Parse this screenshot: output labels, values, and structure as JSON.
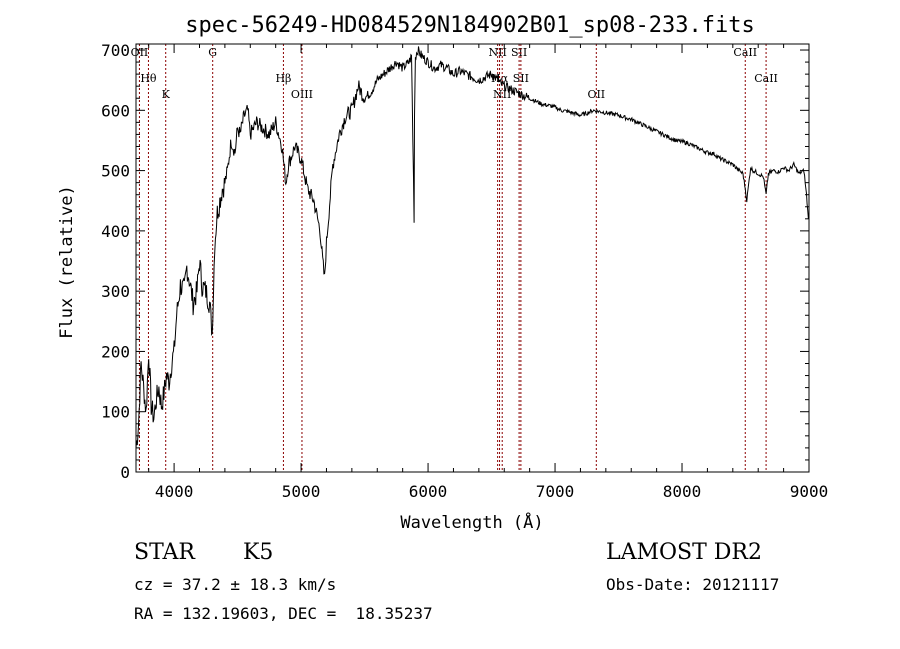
{
  "chart_data": {
    "type": "line",
    "title": "spec-56249-HD084529N184902B01_sp08-233.fits",
    "xlabel": "Wavelength (Å)",
    "ylabel": "Flux (relative)",
    "xlim": [
      3700,
      9000
    ],
    "ylim": [
      0,
      710
    ],
    "xticks": [
      4000,
      5000,
      6000,
      7000,
      8000,
      9000
    ],
    "yticks": [
      0,
      100,
      200,
      300,
      400,
      500,
      600,
      700
    ],
    "grid": false,
    "line_color": "#000000",
    "marker_color": "#8b0000",
    "spectrum": {
      "x": [
        3700,
        3720,
        3740,
        3760,
        3780,
        3800,
        3820,
        3840,
        3860,
        3880,
        3900,
        3920,
        3940,
        3960,
        3980,
        4000,
        4020,
        4050,
        4080,
        4100,
        4120,
        4150,
        4180,
        4200,
        4220,
        4250,
        4280,
        4300,
        4320,
        4340,
        4360,
        4380,
        4400,
        4420,
        4450,
        4480,
        4500,
        4520,
        4550,
        4580,
        4600,
        4650,
        4700,
        4750,
        4800,
        4850,
        4880,
        4900,
        4950,
        5000,
        5050,
        5100,
        5150,
        5170,
        5185,
        5200,
        5250,
        5300,
        5350,
        5400,
        5450,
        5500,
        5550,
        5600,
        5650,
        5700,
        5750,
        5800,
        5850,
        5870,
        5890,
        5893,
        5900,
        5920,
        5950,
        6000,
        6050,
        6100,
        6150,
        6200,
        6250,
        6300,
        6350,
        6400,
        6450,
        6500,
        6550,
        6563,
        6600,
        6650,
        6700,
        6750,
        6800,
        6850,
        6900,
        6950,
        7000,
        7050,
        7100,
        7150,
        7200,
        7250,
        7300,
        7350,
        7400,
        7450,
        7500,
        7550,
        7600,
        7650,
        7700,
        7750,
        7800,
        7850,
        7900,
        7950,
        8000,
        8050,
        8100,
        8150,
        8200,
        8250,
        8300,
        8350,
        8400,
        8450,
        8480,
        8498,
        8510,
        8540,
        8560,
        8580,
        8600,
        8640,
        8662,
        8680,
        8720,
        8760,
        8800,
        8840,
        8880,
        8920,
        8960,
        8980,
        8995
      ],
      "y": [
        40,
        80,
        180,
        140,
        100,
        200,
        110,
        90,
        120,
        140,
        110,
        130,
        160,
        150,
        180,
        200,
        260,
        310,
        300,
        340,
        320,
        280,
        300,
        350,
        310,
        300,
        280,
        230,
        380,
        430,
        450,
        470,
        480,
        500,
        550,
        530,
        570,
        560,
        590,
        600,
        560,
        580,
        570,
        560,
        580,
        540,
        480,
        510,
        540,
        520,
        470,
        450,
        400,
        350,
        320,
        380,
        510,
        560,
        590,
        600,
        640,
        620,
        630,
        650,
        660,
        670,
        680,
        670,
        680,
        690,
        420,
        590,
        690,
        700,
        690,
        680,
        670,
        675,
        670,
        660,
        665,
        660,
        655,
        650,
        655,
        660,
        650,
        645,
        640,
        635,
        630,
        625,
        620,
        615,
        610,
        608,
        605,
        600,
        598,
        595,
        592,
        595,
        600,
        598,
        596,
        594,
        592,
        588,
        585,
        580,
        575,
        570,
        565,
        560,
        555,
        550,
        548,
        545,
        540,
        535,
        530,
        528,
        520,
        515,
        510,
        500,
        495,
        470,
        450,
        505,
        500,
        498,
        495,
        490,
        460,
        495,
        500,
        498,
        505,
        500,
        510,
        495,
        500,
        460,
        420
      ]
    },
    "lines": [
      {
        "label": "OII",
        "wavelength": 3727
      },
      {
        "label": "Hθ",
        "wavelength": 3798
      },
      {
        "label": "K",
        "wavelength": 3934
      },
      {
        "label": "G",
        "wavelength": 4304
      },
      {
        "label": "Hβ",
        "wavelength": 4861
      },
      {
        "label": "OIII",
        "wavelength": 5007
      },
      {
        "label": "NII",
        "wavelength": 6548
      },
      {
        "label": "Hα",
        "wavelength": 6563
      },
      {
        "label": "NII",
        "wavelength": 6584
      },
      {
        "label": "SII",
        "wavelength": 6717
      },
      {
        "label": "SII",
        "wavelength": 6731
      },
      {
        "label": "OII",
        "wavelength": 7325
      },
      {
        "label": "CaII",
        "wavelength": 8498
      },
      {
        "label": "CaII",
        "wavelength": 8662
      }
    ]
  },
  "info": {
    "object_type": "STAR",
    "subclass": "K5",
    "survey": "LAMOST DR2",
    "velocity": "cz = 37.2 ± 18.3 km/s",
    "obs_date": "Obs-Date: 20121117",
    "coords": "RA = 132.19603, DEC =  18.35237"
  }
}
